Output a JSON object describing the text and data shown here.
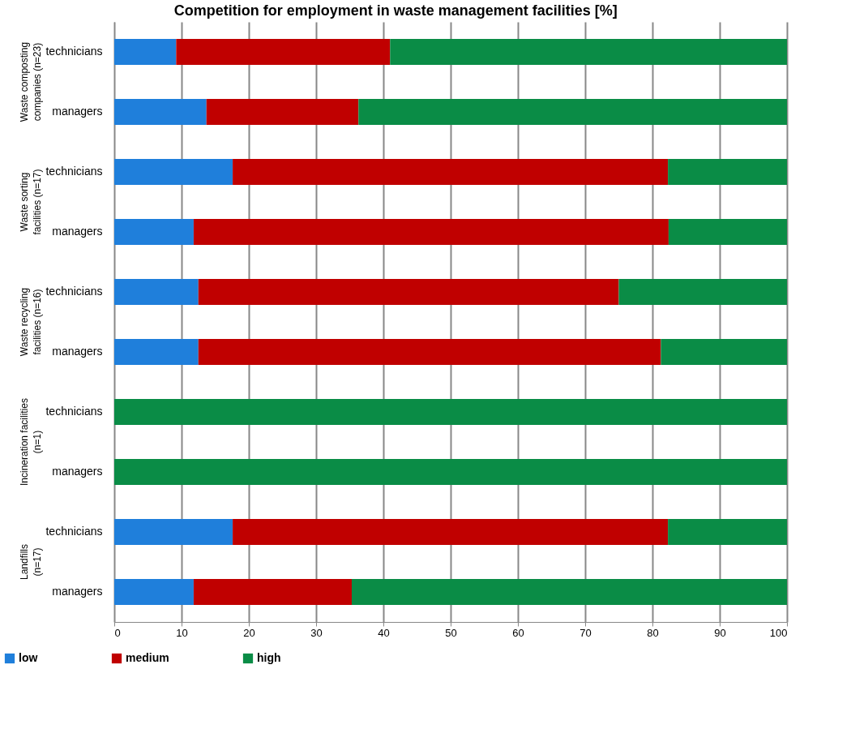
{
  "chart_data": {
    "type": "bar",
    "orientation": "horizontal",
    "stacked": true,
    "title": "Competition for employment in waste management facilities [%]",
    "categories": [
      "technicians",
      "managers",
      "technicians",
      "managers",
      "technicians",
      "managers",
      "technicians",
      "managers",
      "technicians",
      "managers"
    ],
    "series": [
      {
        "name": "low",
        "color": "#1f7fdb",
        "values": [
          9.2,
          13.7,
          17.6,
          11.8,
          12.5,
          12.5,
          0,
          0,
          17.6,
          11.8
        ]
      },
      {
        "name": "medium",
        "color": "#c00000",
        "values": [
          31.8,
          22.6,
          64.7,
          70.6,
          62.5,
          68.75,
          0,
          0,
          64.7,
          23.5
        ]
      },
      {
        "name": "high",
        "color": "#0a8c46",
        "values": [
          59.0,
          63.7,
          17.7,
          17.6,
          25.0,
          18.75,
          100,
          100,
          17.7,
          64.7
        ]
      }
    ],
    "annotations": [
      "Waste composting companies (n=23)",
      "Waste sorting facilities (n=17)",
      "Waste recycling facilities (n=16)",
      "Incineration facilities (n=1)",
      "Landfills (n=17)"
    ],
    "xlim": [
      0,
      100
    ],
    "xticks": [
      0,
      10,
      20,
      30,
      40,
      50,
      60,
      70,
      80,
      90,
      100
    ],
    "grid": "x",
    "legend": "bottom"
  }
}
